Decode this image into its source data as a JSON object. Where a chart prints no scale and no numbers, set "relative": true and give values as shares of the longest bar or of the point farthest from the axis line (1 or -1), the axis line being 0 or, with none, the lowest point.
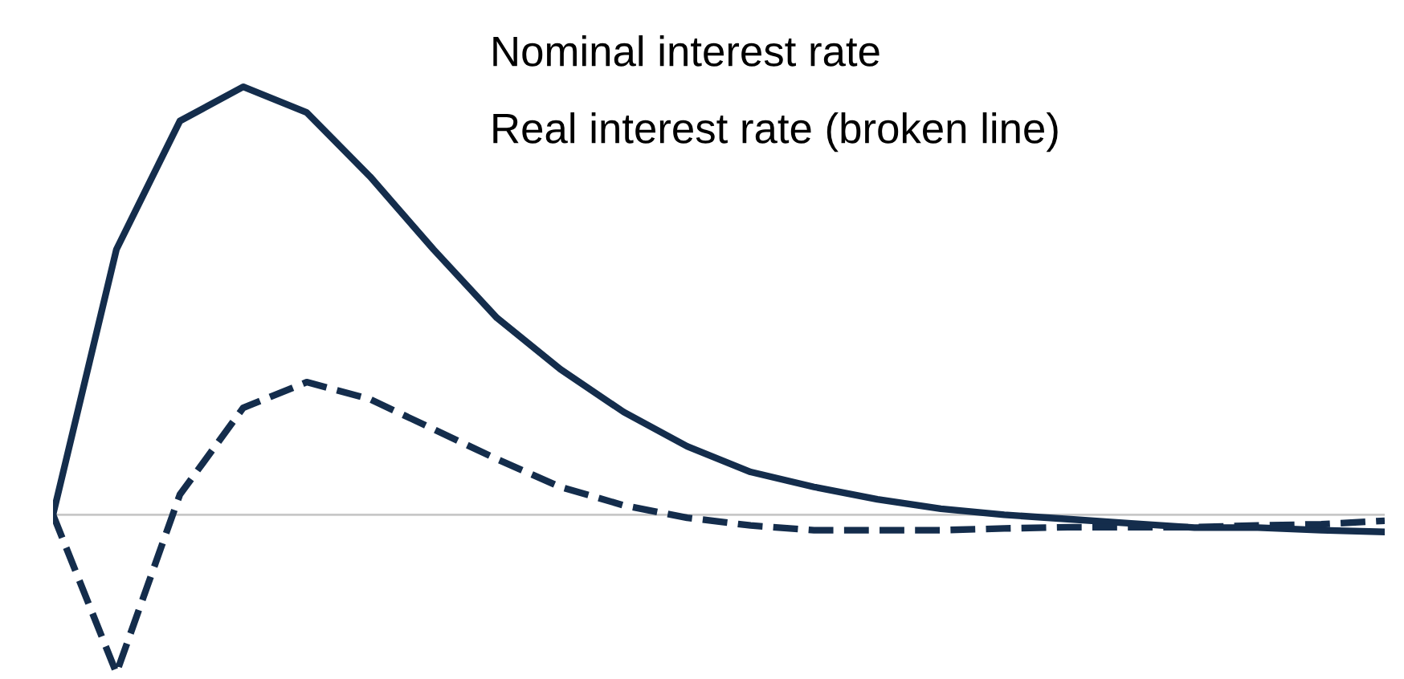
{
  "chart_data": {
    "type": "line",
    "relative": true,
    "categories": [
      null,
      null,
      null,
      null,
      null,
      null,
      null,
      null,
      null,
      null,
      null,
      null,
      null,
      null,
      null,
      null,
      null,
      null,
      null,
      null,
      null,
      null
    ],
    "series": [
      {
        "color": "#142d4c",
        "line_style": "solid",
        "values": [
          0,
          0.62,
          0.92,
          1,
          0.94,
          0.79,
          0.62,
          0.46,
          0.34,
          0.24,
          0.16,
          0.1,
          0.065,
          0.036,
          0.014,
          0,
          -0.01,
          -0.02,
          -0.03,
          -0.03,
          -0.036,
          -0.04
        ]
      },
      {
        "color": "#142d4c",
        "line_style": "dashed",
        "values": [
          0,
          -0.37,
          0.047,
          0.25,
          0.31,
          0.27,
          0.2,
          0.13,
          0.065,
          0.022,
          -0.007,
          -0.025,
          -0.036,
          -0.036,
          -0.036,
          -0.032,
          -0.029,
          -0.029,
          -0.029,
          -0.025,
          -0.022,
          -0.014
        ]
      }
    ],
    "ref_lines": [
      {
        "axis": "y",
        "value": 0,
        "color": "#c8c8c8"
      }
    ],
    "annotations": [
      "Nominal interest rate",
      "Real interest rate (broken line)"
    ],
    "marker": "none"
  }
}
